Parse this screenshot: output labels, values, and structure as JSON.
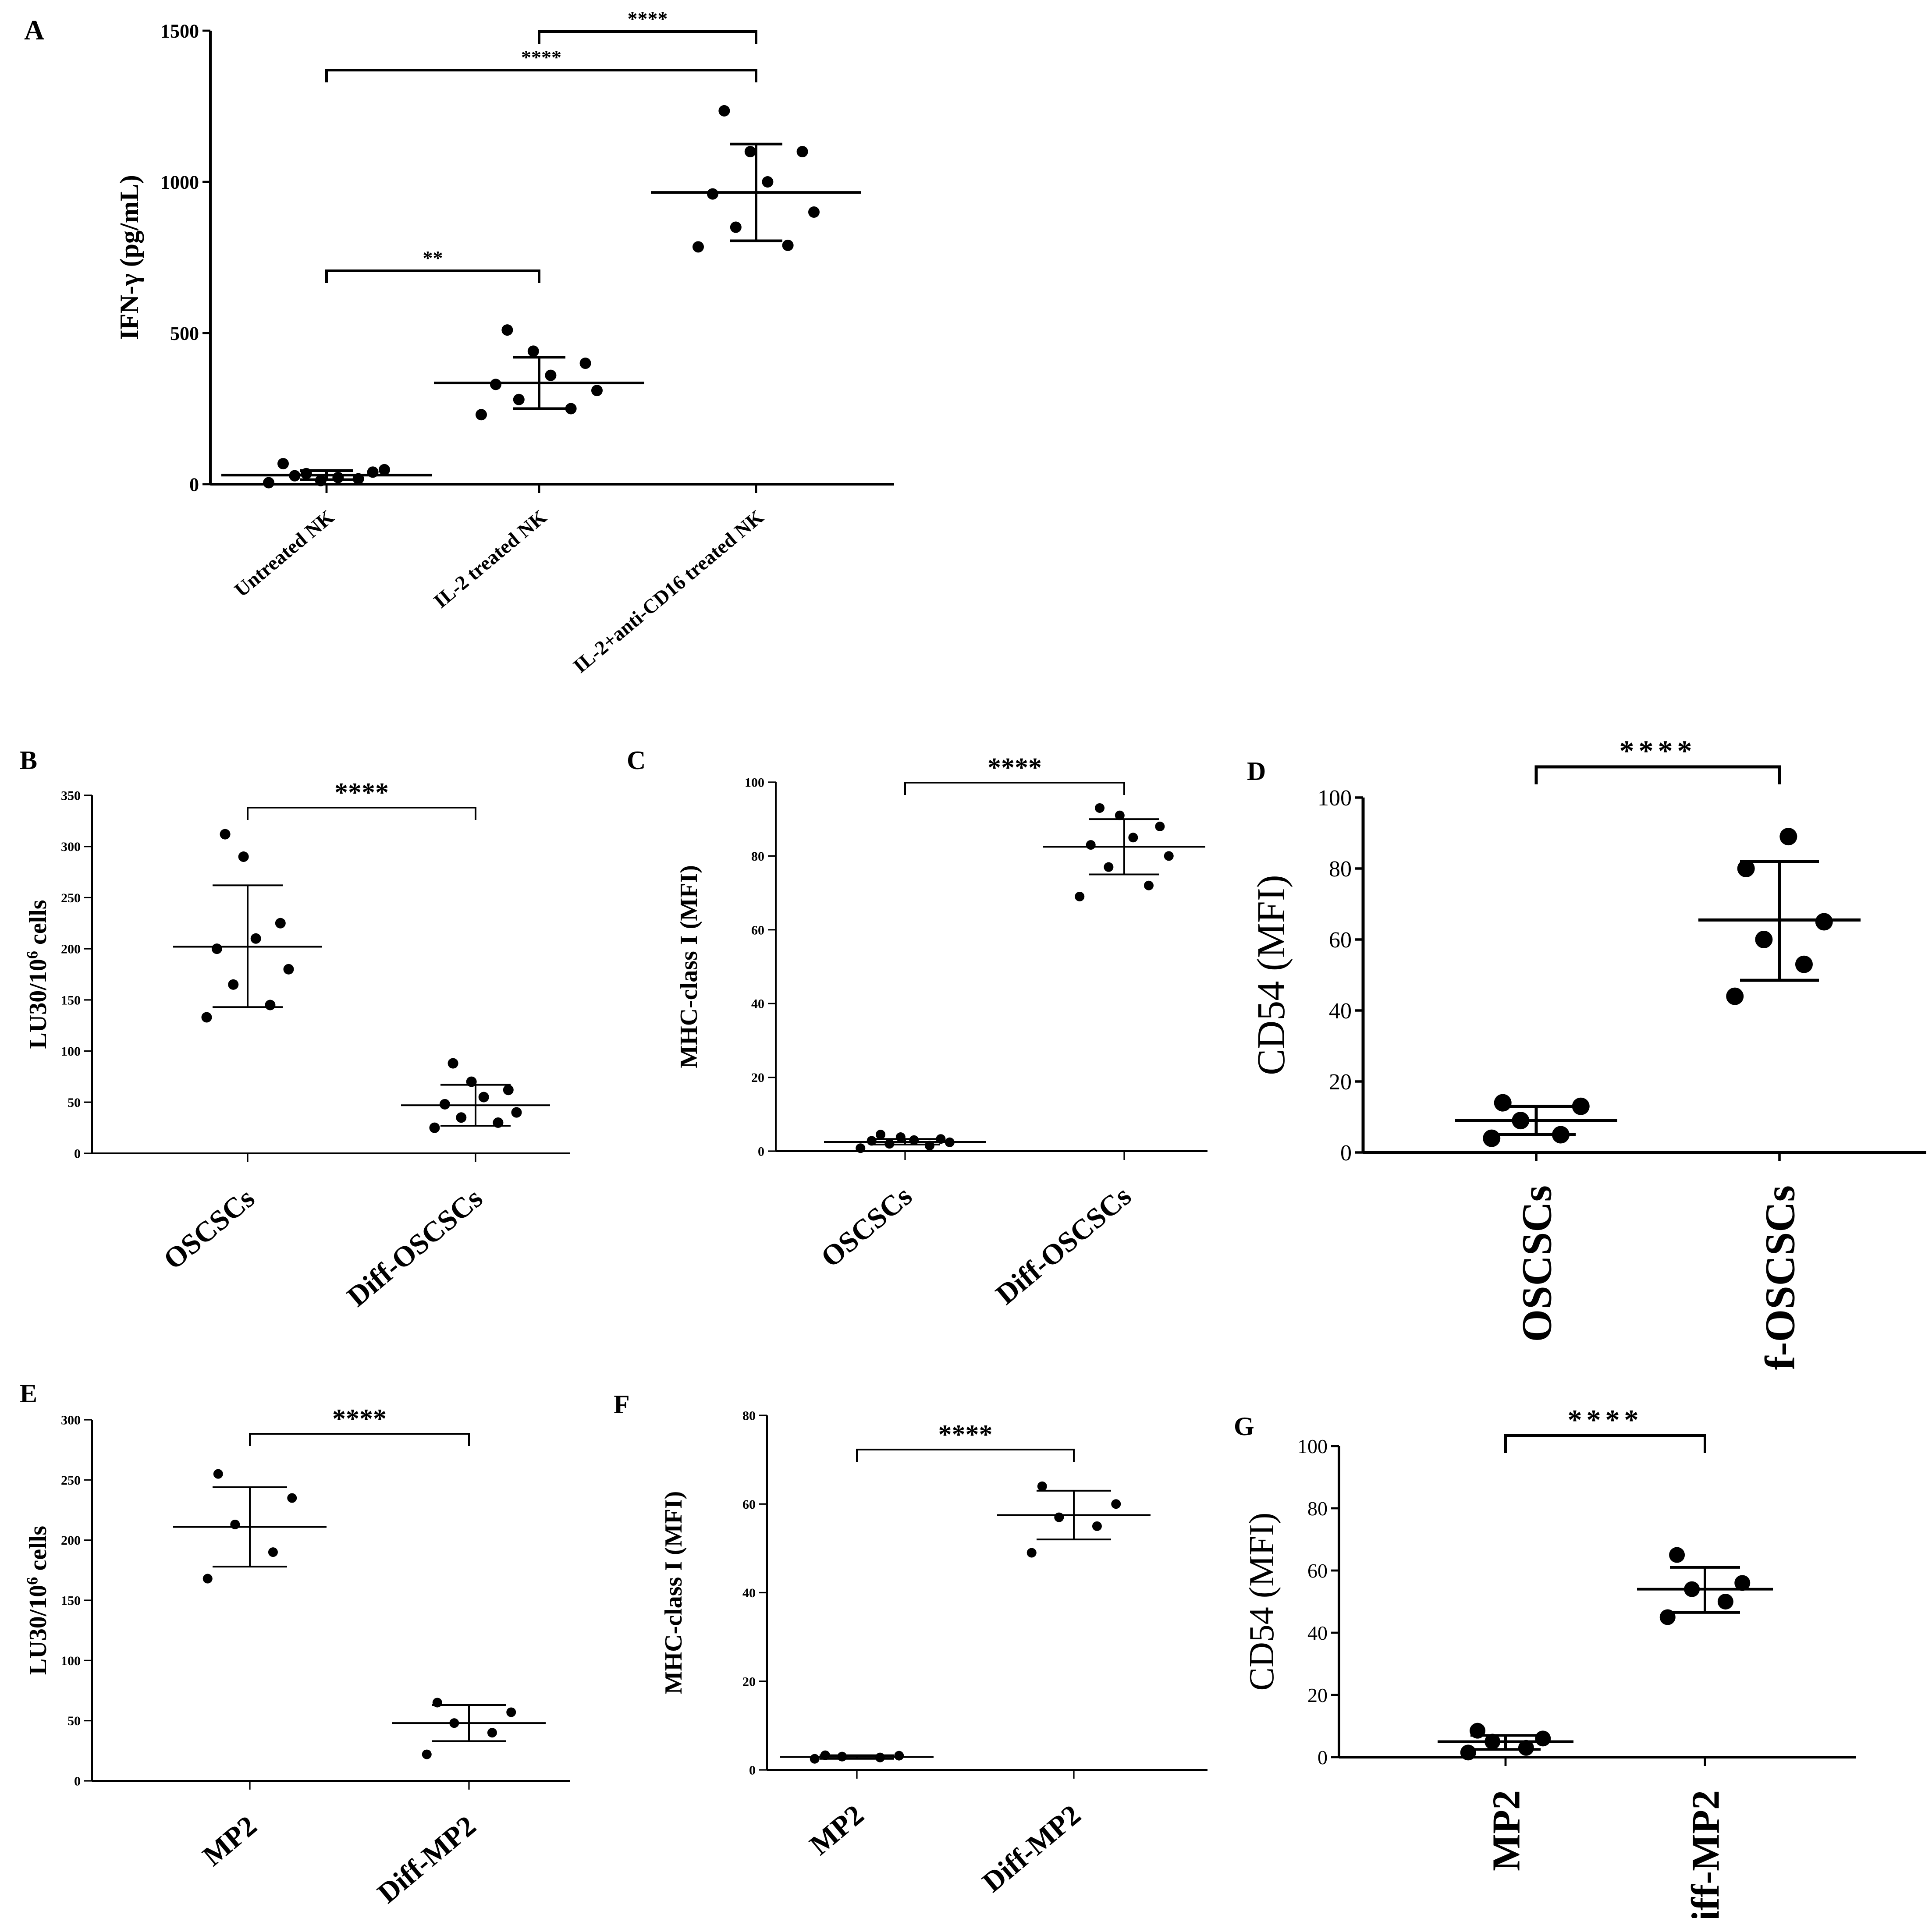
{
  "chart_data": [
    {
      "panel": "A",
      "type": "scatter",
      "ylabel": "IFN-γ (pg/mL)",
      "ylim": [
        0,
        1500
      ],
      "yticks": [
        "0",
        "500",
        "1000",
        "1500"
      ],
      "categories": [
        "Untreated NK",
        "IL-2 treated NK",
        "IL-2+anti-CD16 treated NK"
      ],
      "groups": [
        {
          "points": [
            5,
            18,
            35,
            48,
            68,
            22,
            40,
            12,
            28
          ],
          "mean": 30,
          "sd": [
            15,
            45
          ]
        },
        {
          "points": [
            230,
            250,
            280,
            310,
            330,
            360,
            400,
            440,
            510
          ],
          "mean": 335,
          "sd": [
            250,
            420
          ]
        },
        {
          "points": [
            785,
            790,
            850,
            900,
            960,
            1000,
            1100,
            1100,
            1235
          ],
          "mean": 965,
          "sd": [
            805,
            1125
          ]
        }
      ],
      "brackets": [
        {
          "from": 0,
          "to": 1,
          "label": "**"
        },
        {
          "from": 0,
          "to": 2,
          "label": "****"
        },
        {
          "from": 1,
          "to": 2,
          "label": "****"
        }
      ]
    },
    {
      "panel": "B",
      "type": "scatter",
      "ylabel": "LU30/10",
      "ylabel_sup": "6",
      "ylabel_tail": " cells",
      "ylim": [
        0,
        350
      ],
      "yticks": [
        "0",
        "50",
        "100",
        "150",
        "200",
        "250",
        "300",
        "350"
      ],
      "categories": [
        "OSCSCs",
        "Diff-OSCSCs"
      ],
      "groups": [
        {
          "points": [
            133,
            145,
            165,
            180,
            200,
            210,
            225,
            290,
            312
          ],
          "mean": 202,
          "sd": [
            143,
            262
          ]
        },
        {
          "points": [
            25,
            30,
            35,
            40,
            48,
            55,
            62,
            70,
            88
          ],
          "mean": 47,
          "sd": [
            27,
            67
          ]
        }
      ],
      "brackets": [
        {
          "from": 0,
          "to": 1,
          "label": "****"
        }
      ]
    },
    {
      "panel": "C",
      "type": "scatter",
      "ylabel": "MHC-class I (MFI)",
      "ylim": [
        0,
        100
      ],
      "yticks": [
        "0",
        "20",
        "40",
        "60",
        "80",
        "100"
      ],
      "categories": [
        "OSCSCs",
        "Diff-OSCSCs"
      ],
      "groups": [
        {
          "points": [
            0.8,
            1.5,
            2.0,
            2.4,
            2.8,
            3.0,
            3.3,
            3.8,
            4.5
          ],
          "mean": 2.5,
          "sd": [
            1.8,
            3.3
          ]
        },
        {
          "points": [
            69,
            72,
            77,
            80,
            83,
            85,
            88,
            91,
            93
          ],
          "mean": 82.5,
          "sd": [
            75,
            90
          ]
        }
      ],
      "brackets": [
        {
          "from": 0,
          "to": 1,
          "label": "****"
        }
      ]
    },
    {
      "panel": "D",
      "type": "scatter",
      "ylabel": "CD54 (MFI)",
      "ylim": [
        0,
        100
      ],
      "yticks": [
        "0",
        "20",
        "40",
        "60",
        "80",
        "100"
      ],
      "categories": [
        "OSCSCs",
        "f-OSCSCs"
      ],
      "groups": [
        {
          "points": [
            4,
            5,
            9,
            13,
            14
          ],
          "mean": 9,
          "sd": [
            5,
            13
          ]
        },
        {
          "points": [
            44,
            53,
            60,
            65,
            80,
            89
          ],
          "mean": 65.5,
          "sd": [
            48.5,
            82
          ]
        }
      ],
      "brackets": [
        {
          "from": 0,
          "to": 1,
          "label": "****"
        }
      ]
    },
    {
      "panel": "E",
      "type": "scatter",
      "ylabel": "LU30/10",
      "ylabel_sup": "6",
      "ylabel_tail": " cells",
      "ylim": [
        0,
        300
      ],
      "yticks": [
        "0",
        "50",
        "100",
        "150",
        "200",
        "250",
        "300"
      ],
      "categories": [
        "MP2",
        "Diff-MP2"
      ],
      "groups": [
        {
          "points": [
            168,
            190,
            213,
            235,
            255
          ],
          "mean": 211,
          "sd": [
            178,
            244
          ]
        },
        {
          "points": [
            22,
            40,
            48,
            57,
            65
          ],
          "mean": 48,
          "sd": [
            33,
            63
          ]
        }
      ],
      "brackets": [
        {
          "from": 0,
          "to": 1,
          "label": "****"
        }
      ]
    },
    {
      "panel": "F",
      "type": "scatter",
      "ylabel": "MHC-class I (MFI)",
      "ylim": [
        0,
        80
      ],
      "yticks": [
        "0",
        "20",
        "40",
        "60",
        "80"
      ],
      "categories": [
        "MP2",
        "Diff-MP2"
      ],
      "groups": [
        {
          "points": [
            2.5,
            2.8,
            3.0,
            3.2,
            3.3
          ],
          "mean": 2.9,
          "sd": [
            2.5,
            3.3
          ]
        },
        {
          "points": [
            49,
            55,
            57,
            60,
            64
          ],
          "mean": 57.5,
          "sd": [
            52,
            63
          ]
        }
      ],
      "brackets": [
        {
          "from": 0,
          "to": 1,
          "label": "****"
        }
      ]
    },
    {
      "panel": "G",
      "type": "scatter",
      "ylabel": "CD54 (MFI)",
      "ylim": [
        0,
        100
      ],
      "yticks": [
        "0",
        "20",
        "40",
        "60",
        "80",
        "100"
      ],
      "categories": [
        "MP2",
        "iff-MP2"
      ],
      "groups": [
        {
          "points": [
            1.5,
            3,
            5,
            6,
            8.5
          ],
          "mean": 5,
          "sd": [
            2.5,
            7
          ]
        },
        {
          "points": [
            45,
            50,
            54,
            56,
            65
          ],
          "mean": 54,
          "sd": [
            46.5,
            61
          ]
        }
      ],
      "brackets": [
        {
          "from": 0,
          "to": 1,
          "label": "****"
        }
      ]
    }
  ]
}
